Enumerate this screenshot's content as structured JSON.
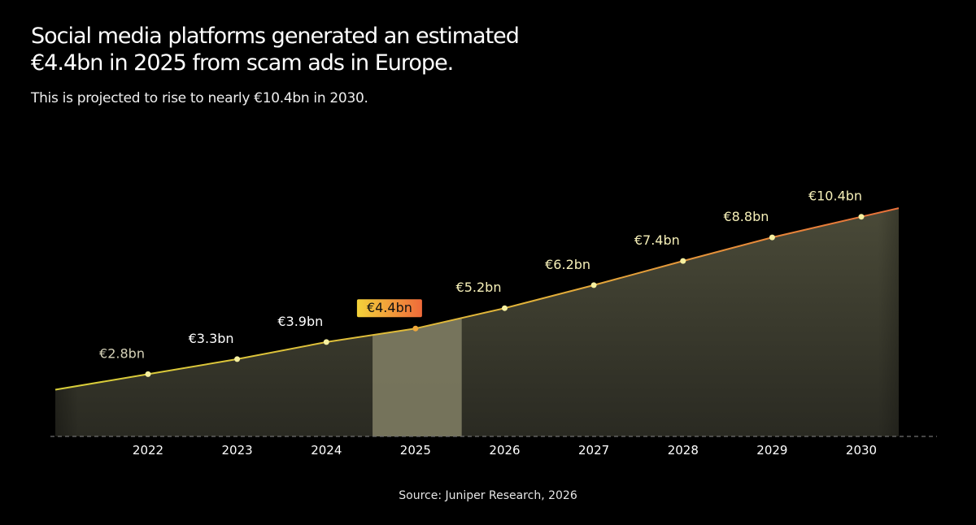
{
  "header": {
    "title_line1": "Social media platforms generated an estimated",
    "title_line2": "€4.4bn in 2025 from scam ads in Europe.",
    "subtitle": "This is projected to rise to nearly €10.4bn in 2030."
  },
  "footer": {
    "source": "Source: Juniper Research, 2026"
  },
  "colors": {
    "background": "#000000",
    "line_start": "#d8cf3a",
    "line_end": "#e8703a",
    "highlight_badge_start": "#f3d23a",
    "highlight_badge_end": "#f06a3a",
    "area_fill": "#3a3a2e",
    "highlight_band": "#7d7b62"
  },
  "chart_data": {
    "type": "area",
    "x": [
      "2022",
      "2023",
      "2024",
      "2025",
      "2026",
      "2027",
      "2028",
      "2029",
      "2030"
    ],
    "values": [
      2.8,
      3.3,
      3.9,
      4.4,
      5.2,
      6.2,
      7.4,
      8.8,
      10.4
    ],
    "data_labels": [
      "€2.8bn",
      "€3.3bn",
      "€3.9bn",
      "€4.4bn",
      "€5.2bn",
      "€6.2bn",
      "€7.4bn",
      "€8.8bn",
      "€10.4bn"
    ],
    "highlight": "2025",
    "grid": false
  }
}
